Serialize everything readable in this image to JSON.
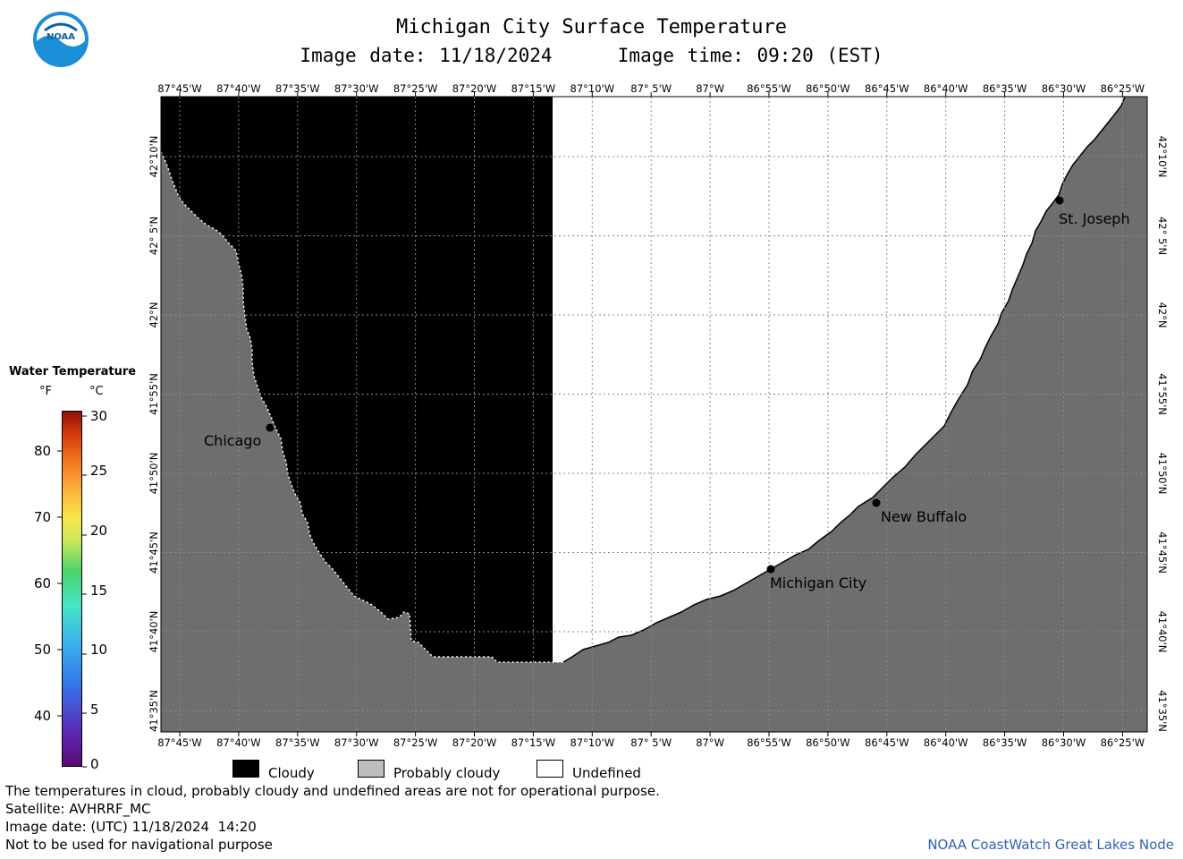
{
  "header": {
    "title": "Michigan City Surface Temperature",
    "subtitle": "Image date: 11/18/2024     Image time: 09:20 (EST)"
  },
  "logo": {
    "text": "NOAA",
    "icon": "noaa-logo-icon",
    "color": "#1a8ed6"
  },
  "map": {
    "lon_labels": [
      "87°45'W",
      "87°40'W",
      "87°35'W",
      "87°30'W",
      "87°25'W",
      "87°20'W",
      "87°15'W",
      "87°10'W",
      "87° 5'W",
      "87°W",
      "86°55'W",
      "86°50'W",
      "86°45'W",
      "86°40'W",
      "86°35'W",
      "86°30'W",
      "86°25'W"
    ],
    "lat_labels": [
      "42°10'N",
      "42° 5'N",
      "42°N",
      "41°55'N",
      "41°50'N",
      "41°45'N",
      "41°40'N",
      "41°35'N"
    ],
    "colors": {
      "cloudy": "#000000",
      "probably_cloudy": "#6e6e6e",
      "undefined": "#ffffff"
    },
    "places": [
      {
        "name": "Chicago"
      },
      {
        "name": "St. Joseph"
      },
      {
        "name": "New Buffalo"
      },
      {
        "name": "Michigan City"
      }
    ]
  },
  "colorbar": {
    "title": "Water Temperature",
    "unit_f": "°F",
    "unit_c": "°C",
    "f_ticks": [
      "80",
      "70",
      "60",
      "50",
      "40"
    ],
    "c_ticks": [
      "30",
      "25",
      "20",
      "15",
      "10",
      "5",
      "0"
    ]
  },
  "legend": {
    "cloudy": "Cloudy",
    "probably_cloudy": "Probably cloudy",
    "undefined": "Undefined"
  },
  "footer": {
    "line1": "The temperatures in cloud, probably cloudy and undefined areas are not for operational purpose.",
    "line2": "Satellite: AVHRRF_MC",
    "line3": "Image date: (UTC) 11/18/2024  14:20",
    "line4": "Not to be used for navigational purpose",
    "credit": "NOAA CoastWatch Great Lakes Node"
  }
}
